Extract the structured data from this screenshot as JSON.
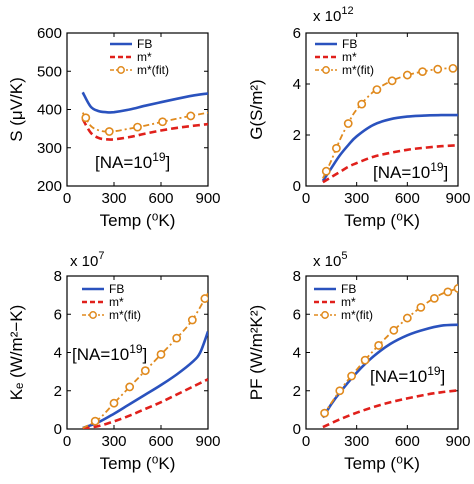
{
  "chart_data": [
    {
      "type": "line",
      "panel": "top-left",
      "title": "",
      "xlabel": "Temp (⁰K)",
      "ylabel": "S (μV/K)",
      "multiplier": "",
      "xlim": [
        0,
        900
      ],
      "ylim": [
        200,
        600
      ],
      "xticks": [
        0,
        300,
        600,
        900
      ],
      "yticks": [
        200,
        300,
        400,
        500,
        600
      ],
      "annotation": "[NA=10",
      "annotation_exp": "19",
      "annotation_end": "]",
      "legend_position": "top-right",
      "series": [
        {
          "name": "FB",
          "color": "#2a52be",
          "style": "solid",
          "x": [
            100,
            150,
            200,
            250,
            300,
            400,
            500,
            600,
            700,
            800,
            900
          ],
          "y": [
            445,
            408,
            396,
            393,
            393,
            400,
            410,
            419,
            428,
            436,
            442
          ]
        },
        {
          "name": "m*",
          "color": "#e0201b",
          "style": "dashed",
          "x": [
            100,
            150,
            200,
            250,
            300,
            400,
            500,
            600,
            700,
            800,
            900
          ],
          "y": [
            375,
            340,
            326,
            322,
            322,
            328,
            337,
            345,
            352,
            357,
            362
          ]
        },
        {
          "name": "m*(fit)",
          "color": "#e08a1e",
          "style": "dashdot-marker",
          "x": [
            100,
            150,
            200,
            250,
            300,
            400,
            500,
            600,
            700,
            800,
            900
          ],
          "y": [
            392,
            358,
            346,
            342,
            343,
            350,
            358,
            367,
            376,
            384,
            392
          ],
          "markers_x": [
            120,
            270,
            450,
            610,
            790
          ]
        }
      ]
    },
    {
      "type": "line",
      "panel": "top-right",
      "title": "",
      "xlabel": "Temp (⁰K)",
      "ylabel": "G(S/m²)",
      "multiplier": "x 10",
      "multiplier_exp": "12",
      "xlim": [
        0,
        900
      ],
      "ylim": [
        0,
        6
      ],
      "xticks": [
        0,
        300,
        600,
        900
      ],
      "yticks": [
        0,
        2,
        4,
        6
      ],
      "annotation": "[NA=10",
      "annotation_exp": "19",
      "annotation_end": "]",
      "legend_position": "top-right",
      "series": [
        {
          "name": "FB",
          "color": "#2a52be",
          "style": "solid",
          "x": [
            100,
            150,
            200,
            250,
            300,
            400,
            500,
            600,
            700,
            800,
            900
          ],
          "y": [
            0.2,
            0.7,
            1.2,
            1.6,
            1.95,
            2.4,
            2.62,
            2.72,
            2.76,
            2.78,
            2.78
          ]
        },
        {
          "name": "m*",
          "color": "#e0201b",
          "style": "dashed",
          "x": [
            100,
            150,
            200,
            250,
            300,
            400,
            500,
            600,
            700,
            800,
            900
          ],
          "y": [
            0.15,
            0.35,
            0.55,
            0.75,
            0.9,
            1.15,
            1.3,
            1.42,
            1.5,
            1.56,
            1.6
          ]
        },
        {
          "name": "m*(fit)",
          "color": "#e08a1e",
          "style": "dashdot-marker",
          "x": [
            100,
            150,
            200,
            250,
            300,
            400,
            500,
            600,
            700,
            800,
            900
          ],
          "y": [
            0.3,
            1.0,
            1.8,
            2.45,
            3.0,
            3.7,
            4.1,
            4.35,
            4.5,
            4.6,
            4.62
          ],
          "markers_x": [
            120,
            180,
            250,
            330,
            420,
            510,
            600,
            690,
            780,
            870
          ]
        }
      ]
    },
    {
      "type": "line",
      "panel": "bottom-left",
      "title": "",
      "xlabel": "Temp (⁰K)",
      "ylabel": "Kₑ (W/m²−K)",
      "multiplier": "x 10",
      "multiplier_exp": "7",
      "xlim": [
        0,
        900
      ],
      "ylim": [
        0,
        8
      ],
      "xticks": [
        0,
        300,
        600,
        900
      ],
      "yticks": [
        0,
        2,
        4,
        6,
        8
      ],
      "annotation": "[NA=10",
      "annotation_exp": "19",
      "annotation_end": "]",
      "legend_position": "top-left",
      "series": [
        {
          "name": "FB",
          "color": "#2a52be",
          "style": "solid",
          "x": [
            100,
            200,
            300,
            400,
            500,
            600,
            700,
            800,
            850,
            900
          ],
          "y": [
            0.05,
            0.35,
            0.8,
            1.3,
            1.8,
            2.3,
            2.85,
            3.5,
            4.0,
            5.1
          ]
        },
        {
          "name": "m*",
          "color": "#e0201b",
          "style": "dashed",
          "x": [
            100,
            200,
            300,
            400,
            500,
            600,
            700,
            800,
            900
          ],
          "y": [
            0.02,
            0.15,
            0.4,
            0.7,
            1.05,
            1.4,
            1.8,
            2.2,
            2.6
          ]
        },
        {
          "name": "m*(fit)",
          "color": "#e08a1e",
          "style": "dashdot-marker",
          "x": [
            100,
            200,
            300,
            400,
            500,
            600,
            700,
            800,
            900
          ],
          "y": [
            0.05,
            0.5,
            1.35,
            2.2,
            3.05,
            3.9,
            4.75,
            5.7,
            7.1
          ],
          "markers_x": [
            180,
            300,
            400,
            500,
            600,
            700,
            800,
            880
          ]
        }
      ]
    },
    {
      "type": "line",
      "panel": "bottom-right",
      "title": "",
      "xlabel": "Temp (⁰K)",
      "ylabel": "PF (W/m²K²)",
      "multiplier": "x 10",
      "multiplier_exp": "5",
      "xlim": [
        0,
        900
      ],
      "ylim": [
        0,
        8
      ],
      "xticks": [
        0,
        300,
        600,
        900
      ],
      "yticks": [
        0,
        2,
        4,
        6,
        8
      ],
      "annotation": "[NA=10",
      "annotation_exp": "19",
      "annotation_end": "]",
      "legend_position": "top-right",
      "series": [
        {
          "name": "FB",
          "color": "#2a52be",
          "style": "solid",
          "x": [
            100,
            150,
            200,
            300,
            400,
            500,
            600,
            700,
            800,
            900
          ],
          "y": [
            0.6,
            1.3,
            1.9,
            2.95,
            3.8,
            4.45,
            4.9,
            5.2,
            5.4,
            5.45
          ]
        },
        {
          "name": "m*",
          "color": "#e0201b",
          "style": "dashed",
          "x": [
            100,
            200,
            300,
            400,
            500,
            600,
            700,
            800,
            900
          ],
          "y": [
            0.1,
            0.5,
            0.85,
            1.15,
            1.4,
            1.6,
            1.78,
            1.92,
            2.02
          ]
        },
        {
          "name": "m*(fit)",
          "color": "#e08a1e",
          "style": "dashdot-marker",
          "x": [
            100,
            200,
            300,
            400,
            500,
            600,
            700,
            800,
            900
          ],
          "y": [
            0.7,
            2.0,
            3.1,
            4.1,
            5.0,
            5.8,
            6.5,
            7.05,
            7.35
          ],
          "markers_x": [
            110,
            200,
            270,
            350,
            430,
            520,
            600,
            680,
            760,
            840,
            900
          ]
        }
      ]
    }
  ]
}
